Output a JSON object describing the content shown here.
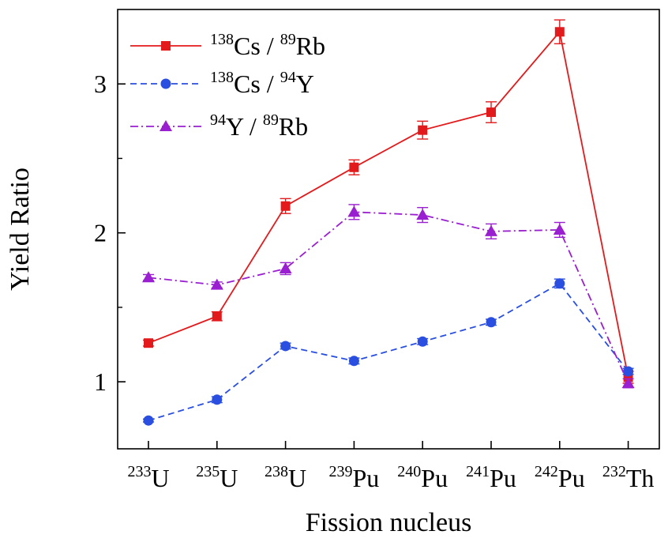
{
  "chart_data": {
    "type": "line",
    "title": "",
    "xlabel": "Fission nucleus",
    "ylabel": "Yield Ratio",
    "ylim": [
      0.55,
      3.5
    ],
    "yticks_major": [
      1,
      2,
      3
    ],
    "yticks_minor": [
      1.5,
      2.5
    ],
    "categories": [
      {
        "mass": "233",
        "element": "U"
      },
      {
        "mass": "235",
        "element": "U"
      },
      {
        "mass": "238",
        "element": "U"
      },
      {
        "mass": "239",
        "element": "Pu"
      },
      {
        "mass": "240",
        "element": "Pu"
      },
      {
        "mass": "241",
        "element": "Pu"
      },
      {
        "mass": "242",
        "element": "Pu"
      },
      {
        "mass": "232",
        "element": "Th"
      }
    ],
    "series": [
      {
        "name": "Cs-138 / Rb-89",
        "legend": {
          "sup1": "138",
          "el1": "Cs",
          "sep": " / ",
          "sup2": "89",
          "el2": "Rb"
        },
        "color": "#e31a1c",
        "marker": "square",
        "dash": "solid",
        "values": [
          1.26,
          1.44,
          2.18,
          2.44,
          2.69,
          2.81,
          3.35,
          1.03
        ],
        "errors": [
          0.02,
          0.03,
          0.05,
          0.05,
          0.06,
          0.07,
          0.08,
          0.04
        ]
      },
      {
        "name": "Cs-138 / Y-94",
        "legend": {
          "sup1": "138",
          "el1": "Cs",
          "sep": " / ",
          "sup2": "94",
          "el2": "Y"
        },
        "color": "#2a4fe0",
        "marker": "circle",
        "dash": "dashed",
        "values": [
          0.74,
          0.88,
          1.24,
          1.14,
          1.27,
          1.4,
          1.66,
          1.07
        ],
        "errors": [
          0.01,
          0.02,
          0.02,
          0.02,
          0.02,
          0.02,
          0.03,
          0.02
        ]
      },
      {
        "name": "Y-94 / Rb-89",
        "legend": {
          "sup1": "94",
          "el1": "Y",
          "sep": " / ",
          "sup2": "89",
          "el2": "Rb"
        },
        "color": "#9a1fd0",
        "marker": "triangle",
        "dash": "dashdot",
        "values": [
          1.7,
          1.65,
          1.76,
          2.14,
          2.12,
          2.01,
          2.02,
          0.99
        ],
        "errors": [
          0.02,
          0.02,
          0.04,
          0.05,
          0.05,
          0.05,
          0.05,
          0.03
        ]
      }
    ]
  }
}
